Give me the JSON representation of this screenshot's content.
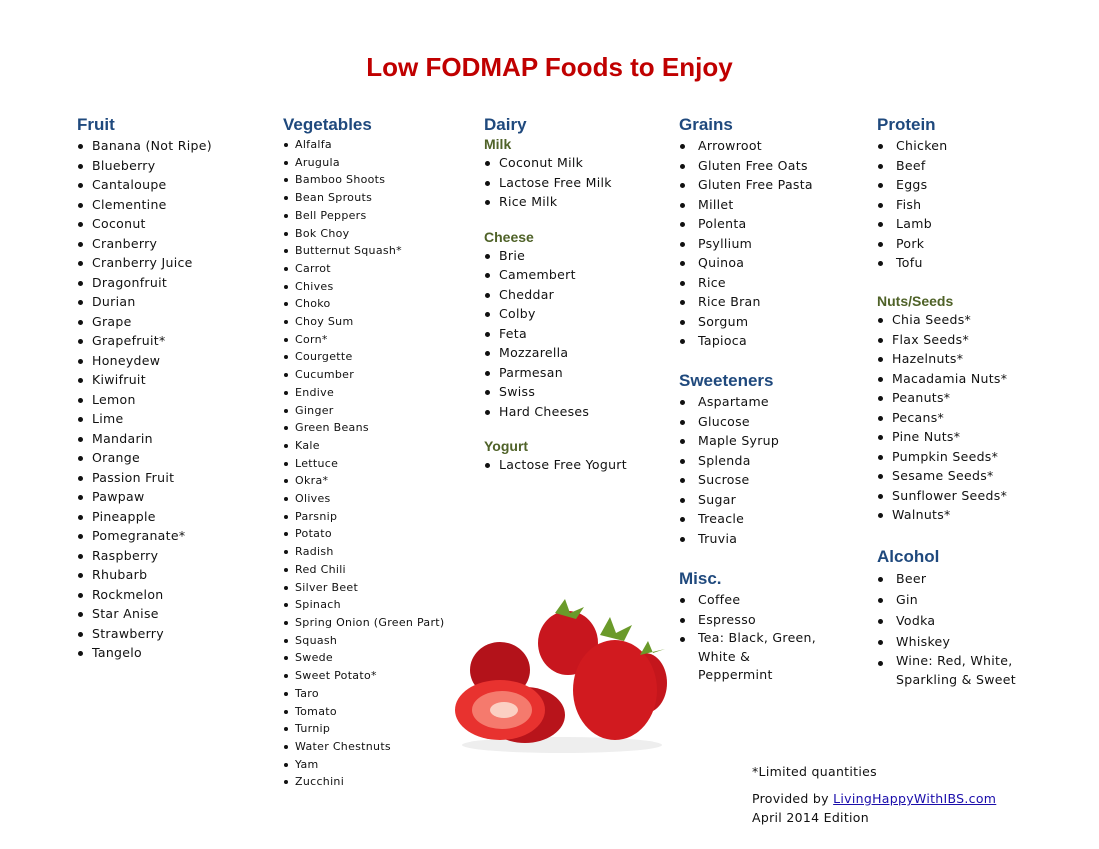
{
  "title": "Low FODMAP Foods to Enjoy",
  "colors": {
    "title": "#C00000",
    "heading": "#1F497D",
    "subheading": "#4F6228"
  },
  "fruit": {
    "heading": "Fruit",
    "items": [
      "Banana (Not Ripe)",
      "Blueberry",
      "Cantaloupe",
      "Clementine",
      "Coconut",
      "Cranberry",
      "Cranberry Juice",
      "Dragonfruit",
      "Durian",
      "Grape",
      "Grapefruit*",
      "Honeydew",
      "Kiwifruit",
      "Lemon",
      "Lime",
      "Mandarin",
      "Orange",
      "Passion Fruit",
      "Pawpaw",
      "Pineapple",
      "Pomegranate*",
      "Raspberry",
      "Rhubarb",
      "Rockmelon",
      "Star Anise",
      "Strawberry",
      "Tangelo"
    ]
  },
  "vegetables": {
    "heading": "Vegetables",
    "items": [
      "Alfalfa",
      "Arugula",
      "Bamboo Shoots",
      "Bean Sprouts",
      "Bell Peppers",
      "Bok Choy",
      "Butternut Squash*",
      "Carrot",
      "Chives",
      "Choko",
      "Choy Sum",
      "Corn*",
      "Courgette",
      "Cucumber",
      "Endive",
      "Ginger",
      "Green Beans",
      "Kale",
      "Lettuce",
      "Okra*",
      "Olives",
      "Parsnip",
      "Potato",
      "Radish",
      "Red Chili",
      "Silver Beet",
      "Spinach",
      "Spring Onion (Green Part)",
      "Squash",
      "Swede",
      "Sweet Potato*",
      "Taro",
      "Tomato",
      "Turnip",
      "Water Chestnuts",
      "Yam",
      "Zucchini"
    ]
  },
  "dairy": {
    "heading": "Dairy",
    "milk": {
      "heading": "Milk",
      "items": [
        "Coconut Milk",
        "Lactose Free Milk",
        "Rice Milk"
      ]
    },
    "cheese": {
      "heading": "Cheese",
      "items": [
        "Brie",
        "Camembert",
        "Cheddar",
        "Colby",
        "Feta",
        "Mozzarella",
        "Parmesan",
        "Swiss",
        "Hard Cheeses"
      ]
    },
    "yogurt": {
      "heading": "Yogurt",
      "items": [
        "Lactose Free Yogurt"
      ]
    }
  },
  "grains": {
    "heading": "Grains",
    "items": [
      "Arrowroot",
      "Gluten Free Oats",
      "Gluten Free Pasta",
      "Millet",
      "Polenta",
      "Psyllium",
      "Quinoa",
      "Rice",
      "Rice Bran",
      "Sorgum",
      "Tapioca"
    ]
  },
  "sweeteners": {
    "heading": "Sweeteners",
    "items": [
      "Aspartame",
      "Glucose",
      "Maple Syrup",
      "Splenda",
      "Sucrose",
      "Sugar",
      "Treacle",
      "Truvia"
    ]
  },
  "misc": {
    "heading": "Misc.",
    "items": [
      "Coffee",
      "Espresso",
      "Tea: Black, Green, White & Peppermint"
    ]
  },
  "protein": {
    "heading": "Protein",
    "items": [
      "Chicken",
      "Beef",
      "Eggs",
      "Fish",
      "Lamb",
      "Pork",
      "Tofu"
    ]
  },
  "nuts": {
    "heading": "Nuts/Seeds",
    "items": [
      "Chia Seeds*",
      "Flax Seeds*",
      "Hazelnuts*",
      "Macadamia Nuts*",
      "Peanuts*",
      "Pecans*",
      "Pine Nuts*",
      "Pumpkin Seeds*",
      "Sesame Seeds*",
      "Sunflower Seeds*",
      "Walnuts*"
    ]
  },
  "alcohol": {
    "heading": "Alcohol",
    "items": [
      "Beer",
      "Gin",
      "Vodka",
      "Whiskey",
      "Wine: Red, White, Sparkling & Sweet"
    ]
  },
  "footer": {
    "note": "*Limited quantities",
    "provided_by": "Provided by ",
    "link": "LivingHappyWithIBS.com",
    "edition": "April 2014 Edition"
  }
}
